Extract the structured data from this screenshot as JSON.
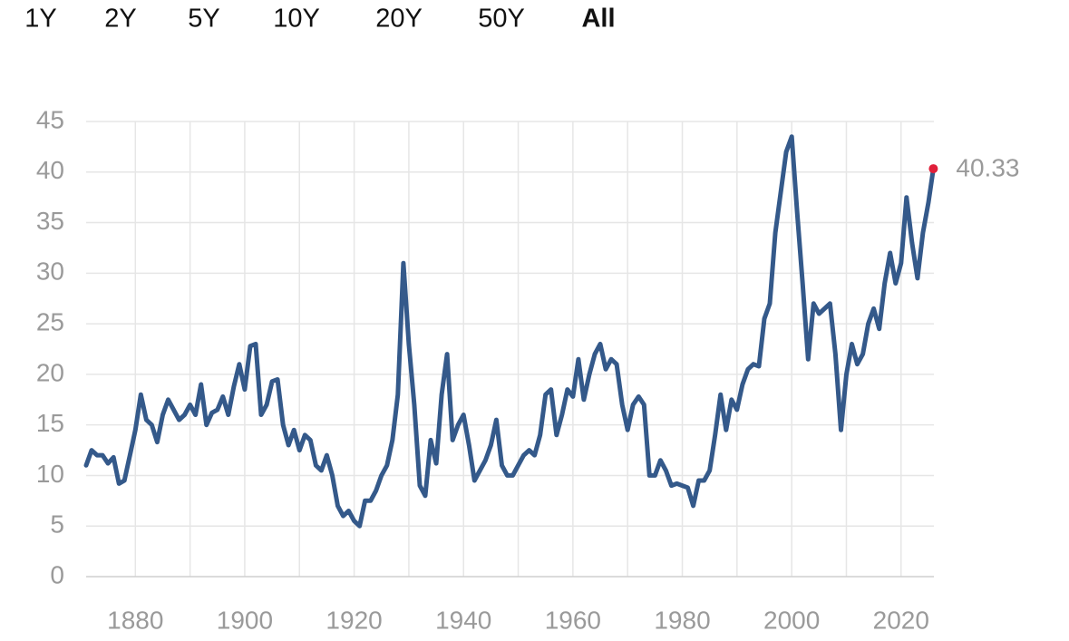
{
  "range_options": [
    "1Y",
    "2Y",
    "5Y",
    "10Y",
    "20Y",
    "50Y",
    "All"
  ],
  "active_range": "All",
  "chart_data": {
    "type": "line",
    "color": "#34598a",
    "marker_color": "#e0203a",
    "grid": true,
    "xlim": [
      1871,
      2026
    ],
    "ylim": [
      0,
      45
    ],
    "yticks": [
      0,
      5,
      10,
      15,
      20,
      25,
      30,
      35,
      40,
      45
    ],
    "xticks": [
      1880,
      1900,
      1920,
      1940,
      1960,
      1980,
      2000,
      2020
    ],
    "x": [
      1871,
      1872,
      1873,
      1874,
      1875,
      1876,
      1877,
      1878,
      1879,
      1880,
      1881,
      1882,
      1883,
      1884,
      1885,
      1886,
      1887,
      1888,
      1889,
      1890,
      1891,
      1892,
      1893,
      1894,
      1895,
      1896,
      1897,
      1898,
      1899,
      1900,
      1901,
      1902,
      1903,
      1904,
      1905,
      1906,
      1907,
      1908,
      1909,
      1910,
      1911,
      1912,
      1913,
      1914,
      1915,
      1916,
      1917,
      1918,
      1919,
      1920,
      1921,
      1922,
      1923,
      1924,
      1925,
      1926,
      1927,
      1928,
      1929,
      1930,
      1931,
      1932,
      1933,
      1934,
      1935,
      1936,
      1937,
      1938,
      1939,
      1940,
      1941,
      1942,
      1943,
      1944,
      1945,
      1946,
      1947,
      1948,
      1949,
      1950,
      1951,
      1952,
      1953,
      1954,
      1955,
      1956,
      1957,
      1958,
      1959,
      1960,
      1961,
      1962,
      1963,
      1964,
      1965,
      1966,
      1967,
      1968,
      1969,
      1970,
      1971,
      1972,
      1973,
      1974,
      1975,
      1976,
      1977,
      1978,
      1979,
      1980,
      1981,
      1982,
      1983,
      1984,
      1985,
      1986,
      1987,
      1988,
      1989,
      1990,
      1991,
      1992,
      1993,
      1994,
      1995,
      1996,
      1997,
      1998,
      1999,
      2000,
      2001,
      2002,
      2003,
      2004,
      2005,
      2006,
      2007,
      2008,
      2009,
      2010,
      2011,
      2012,
      2013,
      2014,
      2015,
      2016,
      2017,
      2018,
      2019,
      2020,
      2021,
      2022,
      2023,
      2024,
      2025,
      2025.9
    ],
    "values": [
      11,
      12.5,
      12,
      12,
      11.2,
      11.8,
      9.2,
      9.5,
      12,
      14.5,
      18,
      15.5,
      15,
      13.3,
      16,
      17.5,
      16.5,
      15.5,
      16,
      17,
      16,
      19,
      15,
      16.2,
      16.5,
      17.8,
      16,
      18.8,
      21,
      18.5,
      22.8,
      23,
      16,
      17,
      19.3,
      19.5,
      15,
      13,
      14.5,
      12.5,
      14,
      13.5,
      11,
      10.5,
      12,
      10,
      7,
      6,
      6.5,
      5.5,
      5,
      7.5,
      7.5,
      8.5,
      10,
      11,
      13.5,
      18,
      31,
      23,
      17,
      9,
      8,
      13.5,
      11.2,
      18,
      22,
      13.5,
      15,
      16,
      13,
      9.5,
      10.5,
      11.5,
      13,
      15.5,
      11,
      10,
      10,
      11,
      12,
      12.5,
      12,
      14,
      18,
      18.5,
      14,
      16,
      18.5,
      17.8,
      21.5,
      17.5,
      20,
      22,
      23,
      20.5,
      21.5,
      21,
      17,
      14.5,
      17,
      17.8,
      17,
      10,
      10,
      11.5,
      10.5,
      9,
      9.2,
      9,
      8.8,
      7,
      9.5,
      9.5,
      10.5,
      14,
      18,
      14.5,
      17.5,
      16.5,
      19,
      20.5,
      21,
      20.8,
      25.5,
      27,
      34,
      38,
      42,
      43.5,
      36,
      29,
      21.5,
      27,
      26,
      26.5,
      27,
      22,
      14.5,
      20,
      23,
      21,
      22,
      25,
      26.5,
      24.5,
      29,
      32,
      29,
      31,
      37.5,
      33,
      29.5,
      34,
      37,
      40.33
    ]
  }
}
